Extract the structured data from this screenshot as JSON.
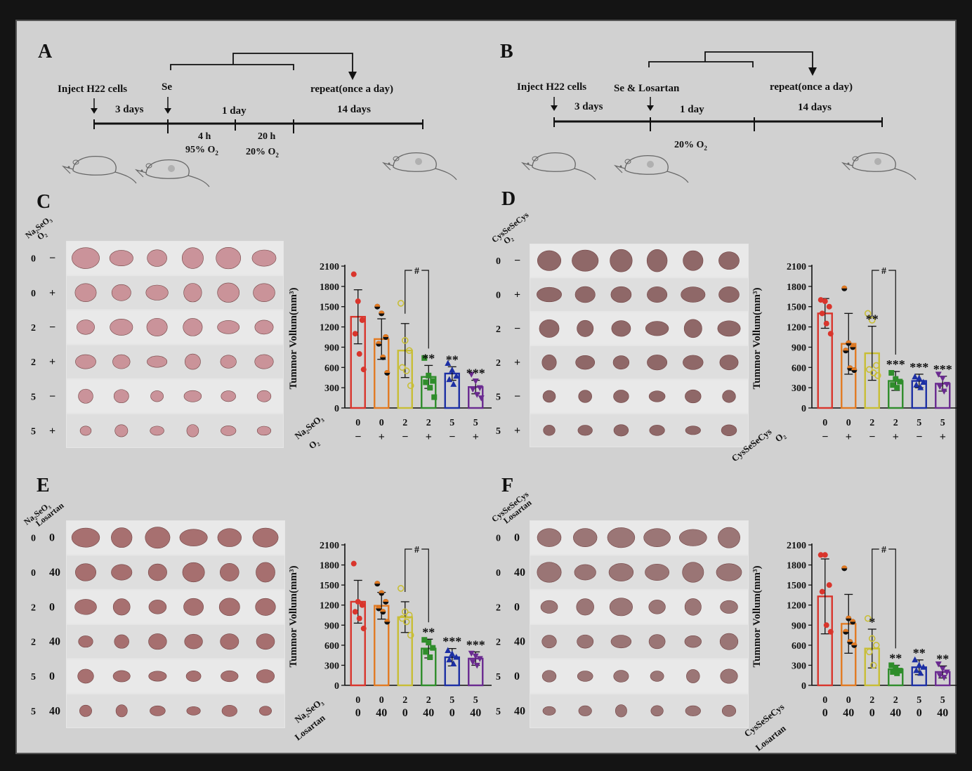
{
  "panels": {
    "A": {
      "letter": "A",
      "inject": "Inject H22 cells",
      "se": "Se",
      "repeat": "repeat(once a day)",
      "days1": "3 days",
      "days2": "1 day",
      "days3": "14 days",
      "t1": "4 h",
      "o1": "95% O",
      "t2": "20 h",
      "o2": "20% O",
      "sub": "2"
    },
    "B": {
      "letter": "B",
      "inject": "Inject H22 cells",
      "se": "Se & Losartan",
      "repeat": "repeat(once a day)",
      "days1": "3 days",
      "days2": "1 day",
      "days3": "14 days",
      "o": "20% O",
      "sub": "2"
    },
    "C": {
      "letter": "C"
    },
    "D": {
      "letter": "D"
    },
    "E": {
      "letter": "E"
    },
    "F": {
      "letter": "F"
    }
  },
  "photos": {
    "C": {
      "headers": [
        "Na₂SeO₃",
        "O₂"
      ],
      "rows": [
        [
          "0",
          "−"
        ],
        [
          "0",
          "+"
        ],
        [
          "2",
          "−"
        ],
        [
          "2",
          "+"
        ],
        [
          "5",
          "−"
        ],
        [
          "5",
          "+"
        ]
      ],
      "tone": "#c98f96"
    },
    "D": {
      "headers": [
        "CysSeSeCys",
        "O₂"
      ],
      "rows": [
        [
          "0",
          "−"
        ],
        [
          "0",
          "+"
        ],
        [
          "2",
          "−"
        ],
        [
          "2",
          "+"
        ],
        [
          "5",
          "−"
        ],
        [
          "5",
          "+"
        ]
      ],
      "tone": "#8b6262"
    },
    "E": {
      "headers": [
        "Na₂SeO₃",
        "Losartan"
      ],
      "rows": [
        [
          "0",
          "0"
        ],
        [
          "0",
          "40"
        ],
        [
          "2",
          "0"
        ],
        [
          "2",
          "40"
        ],
        [
          "5",
          "0"
        ],
        [
          "5",
          "40"
        ]
      ],
      "tone": "#a46a6a"
    },
    "F": {
      "headers": [
        "CysSeSeCys",
        "Losartan"
      ],
      "rows": [
        [
          "0",
          "0"
        ],
        [
          "0",
          "40"
        ],
        [
          "2",
          "0"
        ],
        [
          "2",
          "40"
        ],
        [
          "5",
          "0"
        ],
        [
          "5",
          "40"
        ]
      ],
      "tone": "#977070"
    }
  },
  "chart_data": [
    {
      "panel": "C",
      "type": "bar",
      "ylabel": "Tummor Vollum(mm³)",
      "ylim": [
        0,
        2100
      ],
      "yticks": [
        0,
        300,
        600,
        900,
        1200,
        1500,
        1800,
        2100
      ],
      "row_labels": [
        "Na₂SeO₃",
        "O₂"
      ],
      "rows": [
        [
          "0",
          "0",
          "2",
          "2",
          "5",
          "5"
        ],
        [
          "−",
          "+",
          "−",
          "+",
          "−",
          "+"
        ]
      ],
      "values": [
        1350,
        1020,
        850,
        460,
        510,
        310
      ],
      "errors": [
        400,
        300,
        400,
        170,
        100,
        100
      ],
      "points": [
        [
          1980,
          1580,
          1300,
          1100,
          800,
          570
        ],
        [
          1500,
          1400,
          1050,
          950,
          750,
          520
        ],
        [
          1550,
          1000,
          850,
          600,
          550,
          330
        ],
        [
          740,
          480,
          400,
          380,
          300,
          160
        ],
        [
          660,
          560,
          470,
          420,
          350
        ],
        [
          500,
          400,
          300,
          280,
          200,
          150
        ]
      ],
      "significance": [
        "",
        "",
        "",
        "**",
        "**",
        "***"
      ],
      "bracket": {
        "from": 2,
        "to": 3,
        "label": "#"
      },
      "colors": [
        "#d9352c",
        "#e27a22",
        "#c8be35",
        "#2f8d2b",
        "#1c2fa4",
        "#6a2a90"
      ],
      "markers": [
        "circle",
        "circle-half",
        "circle-open",
        "square",
        "triangle",
        "triangle-down"
      ]
    },
    {
      "panel": "D",
      "type": "bar",
      "ylabel": "Tummor Vollum(mm³)",
      "ylim": [
        0,
        2100
      ],
      "yticks": [
        0,
        300,
        600,
        900,
        1200,
        1500,
        1800,
        2100
      ],
      "row_labels": [
        "CysSeSeCys",
        "O₂"
      ],
      "rows": [
        [
          "0",
          "0",
          "2",
          "2",
          "5",
          "5"
        ],
        [
          "−",
          "+",
          "−",
          "+",
          "−",
          "+"
        ]
      ],
      "values": [
        1400,
        950,
        810,
        400,
        400,
        360
      ],
      "errors": [
        220,
        450,
        400,
        140,
        100,
        110
      ],
      "points": [
        [
          1600,
          1580,
          1500,
          1400,
          1250,
          1100
        ],
        [
          1770,
          960,
          900,
          850,
          590,
          560
        ],
        [
          1400,
          1300,
          630,
          570,
          520,
          480
        ],
        [
          520,
          430,
          390,
          340,
          300
        ],
        [
          460,
          440,
          380,
          340,
          300
        ],
        [
          500,
          440,
          350,
          320,
          250
        ]
      ],
      "significance": [
        "",
        "",
        "**",
        "***",
        "***",
        "***"
      ],
      "bracket": {
        "from": 2,
        "to": 3,
        "label": "#"
      },
      "colors": [
        "#d9352c",
        "#e27a22",
        "#c8be35",
        "#2f8d2b",
        "#1c2fa4",
        "#6a2a90"
      ],
      "markers": [
        "circle",
        "circle-half",
        "circle-open",
        "square",
        "triangle",
        "triangle-down"
      ]
    },
    {
      "panel": "E",
      "type": "bar",
      "ylabel": "Tummor Vollum(mm³)",
      "ylim": [
        0,
        2100
      ],
      "yticks": [
        0,
        300,
        600,
        900,
        1200,
        1500,
        1800,
        2100
      ],
      "row_labels": [
        "Na₂SeO₃",
        "Losartan"
      ],
      "rows": [
        [
          "0",
          "0",
          "2",
          "2",
          "5",
          "5"
        ],
        [
          "0",
          "40",
          "0",
          "40",
          "0",
          "40"
        ]
      ],
      "values": [
        1250,
        1190,
        1020,
        550,
        420,
        400
      ],
      "errors": [
        320,
        200,
        230,
        140,
        130,
        100
      ],
      "points": [
        [
          1820,
          1250,
          1200,
          1100,
          1000,
          850
        ],
        [
          1520,
          1380,
          1250,
          1150,
          1100,
          950
        ],
        [
          1450,
          1100,
          1050,
          1000,
          950,
          750
        ],
        [
          680,
          640,
          560,
          500,
          420
        ],
        [
          520,
          470,
          420,
          380,
          320
        ],
        [
          480,
          440,
          400,
          350,
          300
        ]
      ],
      "significance": [
        "",
        "",
        "",
        "**",
        "***",
        "***"
      ],
      "bracket": {
        "from": 2,
        "to": 3,
        "label": "#"
      },
      "colors": [
        "#d9352c",
        "#e27a22",
        "#c8be35",
        "#2f8d2b",
        "#1c2fa4",
        "#6a2a90"
      ],
      "markers": [
        "circle",
        "circle-half",
        "circle-open",
        "square",
        "triangle",
        "triangle-down"
      ]
    },
    {
      "panel": "F",
      "type": "bar",
      "ylabel": "Tummor Vollum(mm³)",
      "ylim": [
        0,
        2100
      ],
      "yticks": [
        0,
        300,
        600,
        900,
        1200,
        1500,
        1800,
        2100
      ],
      "row_labels": [
        "CysSeSeCys",
        "Losartan"
      ],
      "rows": [
        [
          "0",
          "0",
          "2",
          "2",
          "5",
          "5"
        ],
        [
          "0",
          "40",
          "0",
          "40",
          "0",
          "40"
        ]
      ],
      "values": [
        1330,
        920,
        550,
        240,
        270,
        200
      ],
      "errors": [
        560,
        440,
        290,
        60,
        110,
        90
      ],
      "points": [
        [
          1950,
          1950,
          1500,
          1400,
          900,
          800
        ],
        [
          1750,
          1000,
          950,
          800,
          650,
          600
        ],
        [
          1000,
          700,
          600,
          500,
          300
        ],
        [
          300,
          260,
          220,
          200,
          180
        ],
        [
          380,
          300,
          270,
          220,
          180
        ],
        [
          320,
          250,
          200,
          150,
          120
        ]
      ],
      "significance": [
        "",
        "",
        "*",
        "**",
        "**",
        "**"
      ],
      "bracket": {
        "from": 2,
        "to": 3,
        "label": "#"
      },
      "colors": [
        "#d9352c",
        "#e27a22",
        "#c8be35",
        "#2f8d2b",
        "#1c2fa4",
        "#6a2a90"
      ],
      "markers": [
        "circle",
        "circle-half",
        "circle-open",
        "square",
        "triangle",
        "triangle-down"
      ]
    }
  ]
}
